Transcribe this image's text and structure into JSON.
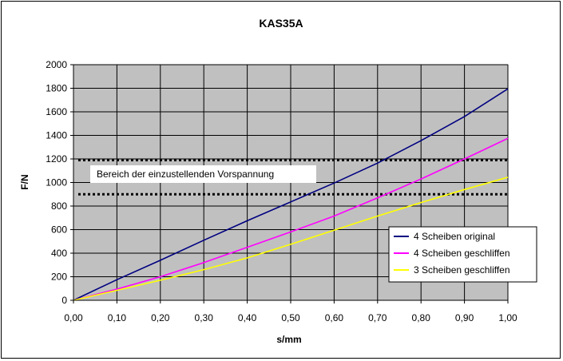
{
  "chart_data": {
    "type": "line",
    "title": "KAS35A",
    "xlabel": "s/mm",
    "ylabel": "F/N",
    "xlim": [
      0,
      1
    ],
    "ylim": [
      0,
      2000
    ],
    "x_ticks": [
      "0,00",
      "0,10",
      "0,20",
      "0,30",
      "0,40",
      "0,50",
      "0,60",
      "0,70",
      "0,80",
      "0,90",
      "1,00"
    ],
    "y_ticks": [
      "0",
      "200",
      "400",
      "600",
      "800",
      "1000",
      "1200",
      "1400",
      "1600",
      "1800",
      "2000"
    ],
    "grid": true,
    "plot_background": "#c0c0c0",
    "legend_position": "bottom-right",
    "series": [
      {
        "name": "4 Scheiben original",
        "color": "#000080",
        "x": [
          0,
          0.1,
          0.2,
          0.3,
          0.4,
          0.5,
          0.6,
          0.7,
          0.8,
          0.9,
          1.0
        ],
        "y": [
          0,
          175,
          340,
          510,
          675,
          835,
          995,
          1165,
          1355,
          1560,
          1795
        ]
      },
      {
        "name": "4 Scheiben geschliffen",
        "color": "#ff00ff",
        "x": [
          0,
          0.1,
          0.2,
          0.3,
          0.4,
          0.5,
          0.6,
          0.7,
          0.8,
          0.9,
          1.0
        ],
        "y": [
          0,
          95,
          200,
          320,
          450,
          580,
          715,
          870,
          1030,
          1200,
          1375
        ]
      },
      {
        "name": "3 Scheiben geschliffen",
        "color": "#ffff00",
        "x": [
          0,
          0.1,
          0.2,
          0.3,
          0.4,
          0.5,
          0.6,
          0.7,
          0.8,
          0.9,
          1.0
        ],
        "y": [
          0,
          85,
          170,
          260,
          360,
          475,
          595,
          715,
          830,
          940,
          1045
        ]
      }
    ],
    "reference_lines": [
      {
        "y": 1190
      },
      {
        "y": 900
      }
    ],
    "annotation": "Bereich der einzustellenden Vorspannung"
  }
}
